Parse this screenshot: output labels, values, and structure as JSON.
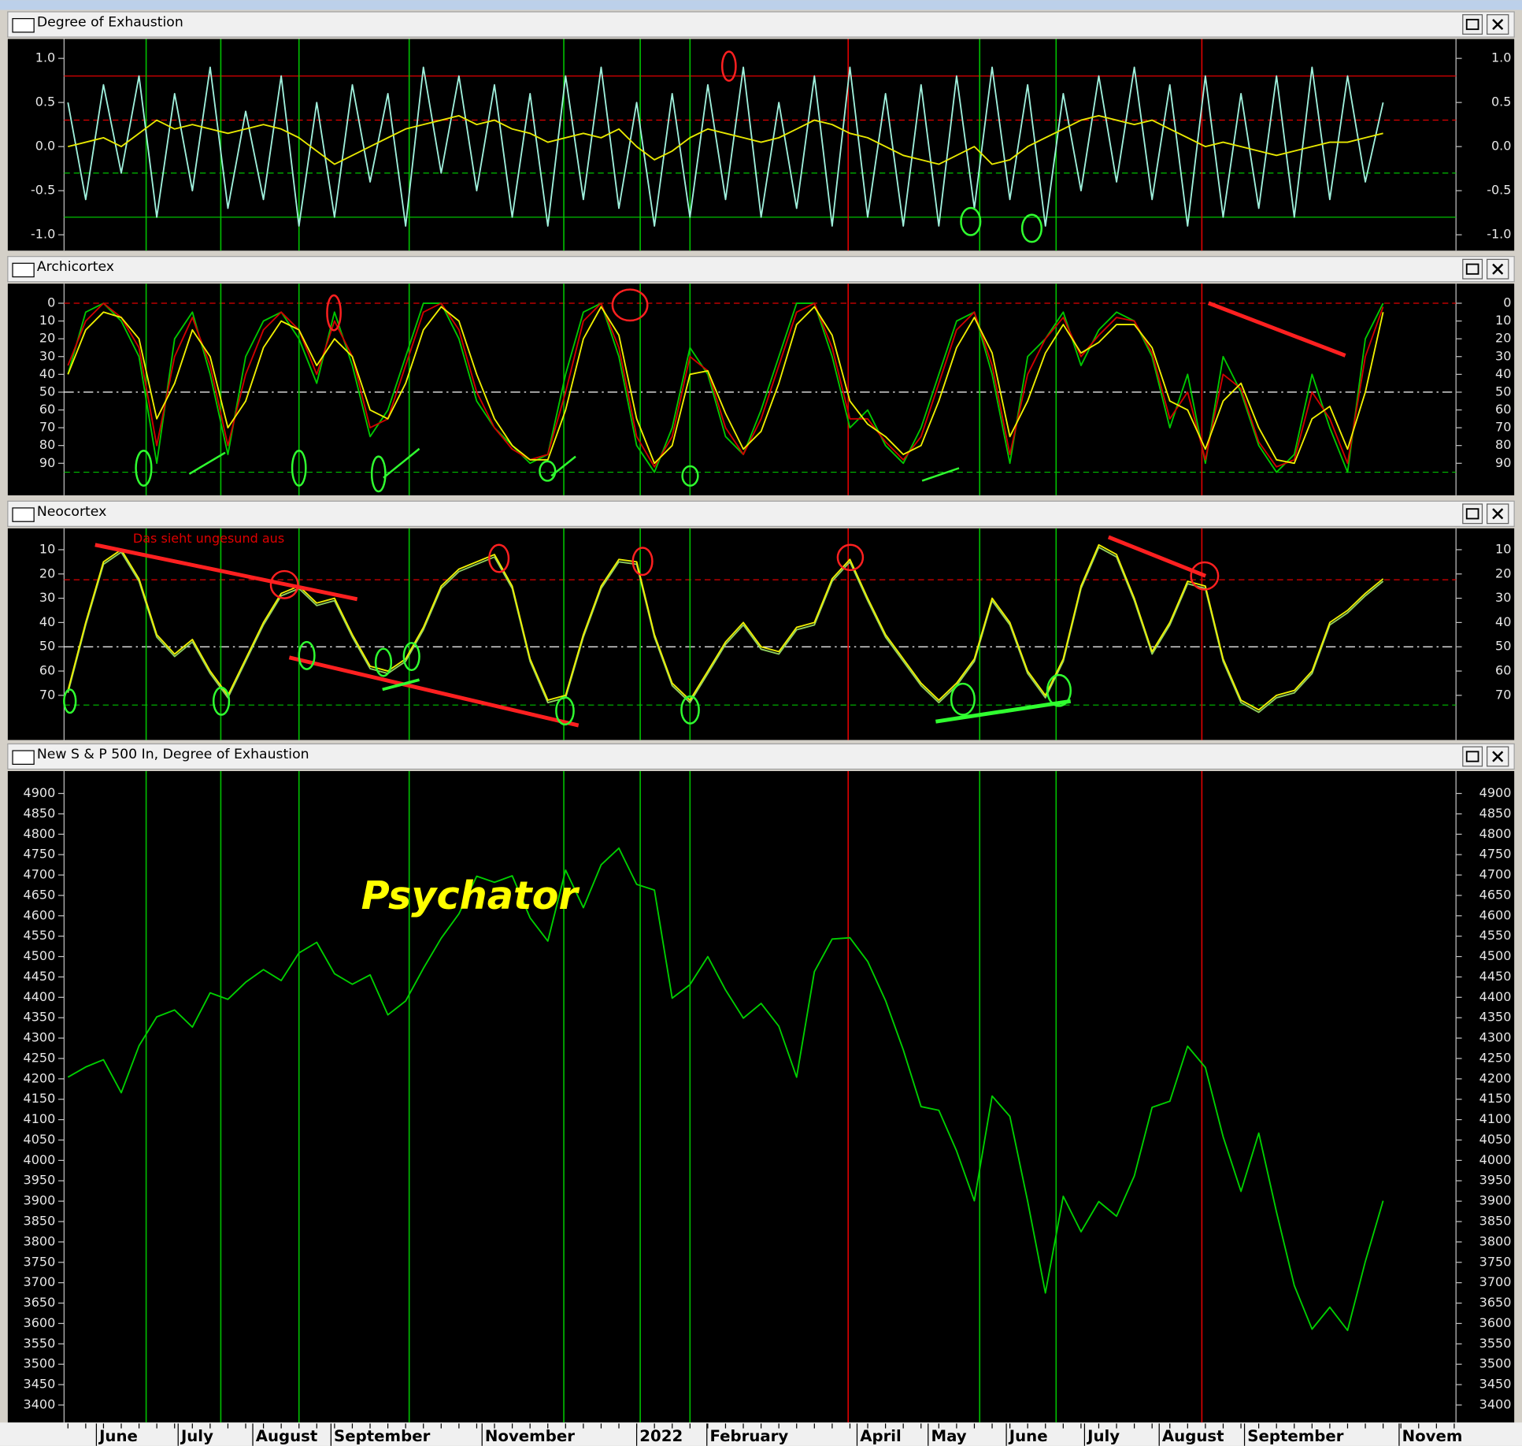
{
  "chart_data": [
    {
      "type": "line",
      "title": "Degree of Exhaustion",
      "xlim": [
        0,
        78.1
      ],
      "ylim": [
        -1.18,
        1.22
      ],
      "yticks": [
        {
          "value": -1,
          "label": "-1.0"
        },
        -0.5,
        {
          "value": 0,
          "label": "0.0"
        },
        0.5,
        {
          "value": 1,
          "label": "1.0"
        }
      ],
      "levels": [
        {
          "value": 0.8,
          "color": "#e00000",
          "style": "solid"
        },
        {
          "value": 0.3,
          "color": "#e00000",
          "style": "dashed"
        },
        {
          "value": -0.3,
          "color": "#00c000",
          "style": "dashed"
        },
        {
          "value": -0.8,
          "color": "#00c000",
          "style": "solid"
        }
      ],
      "series": [
        {
          "color": "#9ff0dc",
          "values": [
            0.5,
            -0.6,
            0.7,
            -0.3,
            0.8,
            -0.8,
            0.6,
            -0.5,
            0.9,
            -0.7,
            0.4,
            -0.6,
            0.8,
            -0.9,
            0.5,
            -0.8,
            0.7,
            -0.4,
            0.6,
            -0.9,
            0.9,
            -0.3,
            0.8,
            -0.5,
            0.7,
            -0.8,
            0.6,
            -0.9,
            0.8,
            -0.6,
            0.9,
            -0.7,
            0.5,
            -0.9,
            0.6,
            -0.8,
            0.7,
            -0.6,
            0.9,
            -0.8,
            0.5,
            -0.7,
            0.8,
            -0.9,
            0.9,
            -0.8,
            0.6,
            -0.9,
            0.7,
            -0.9,
            0.8,
            -0.7,
            0.9,
            -0.6,
            0.7,
            -0.9,
            0.6,
            -0.5,
            0.8,
            -0.4,
            0.9,
            -0.6,
            0.7,
            -0.9,
            0.8,
            -0.8,
            0.6,
            -0.7,
            0.8,
            -0.8,
            0.9,
            -0.6,
            0.8,
            -0.4,
            0.5
          ]
        },
        {
          "color": "#e8e800",
          "values": [
            0,
            0.05,
            0.1,
            0,
            0.15,
            0.3,
            0.2,
            0.25,
            0.2,
            0.15,
            0.2,
            0.25,
            0.2,
            0.1,
            -0.05,
            -0.2,
            -0.1,
            0,
            0.1,
            0.2,
            0.25,
            0.3,
            0.35,
            0.25,
            0.3,
            0.2,
            0.15,
            0.05,
            0.1,
            0.15,
            0.1,
            0.2,
            0,
            -0.15,
            -0.05,
            0.1,
            0.2,
            0.15,
            0.1,
            0.05,
            0.1,
            0.2,
            0.3,
            0.25,
            0.15,
            0.1,
            0,
            -0.1,
            -0.15,
            -0.2,
            -0.1,
            0,
            -0.2,
            -0.15,
            0,
            0.1,
            0.2,
            0.3,
            0.35,
            0.3,
            0.25,
            0.3,
            0.2,
            0.1,
            0,
            0.05,
            0,
            -0.05,
            -0.1,
            -0.05,
            0,
            0.05,
            0.05,
            0.1,
            0.15
          ]
        }
      ]
    },
    {
      "type": "line",
      "title": "Archicortex",
      "xlim": [
        0,
        78.1
      ],
      "ylim": [
        108,
        -11
      ],
      "yticks": [
        0,
        10,
        20,
        30,
        40,
        50,
        60,
        70,
        80,
        90
      ],
      "levels": [
        {
          "value": 0,
          "color": "#e00000",
          "style": "dashed"
        },
        {
          "value": 50,
          "color": "#ffffff",
          "style": "dashdot"
        },
        {
          "value": 95,
          "color": "#00c000",
          "style": "dashed"
        }
      ],
      "series": [
        {
          "color": "#00c800",
          "values": [
            40,
            5,
            0,
            10,
            30,
            90,
            20,
            5,
            40,
            85,
            30,
            10,
            5,
            20,
            45,
            5,
            35,
            75,
            60,
            30,
            0,
            0,
            20,
            55,
            70,
            80,
            90,
            85,
            40,
            5,
            0,
            30,
            80,
            95,
            70,
            25,
            40,
            75,
            85,
            60,
            30,
            0,
            0,
            30,
            70,
            60,
            80,
            90,
            70,
            40,
            10,
            5,
            40,
            90,
            30,
            20,
            5,
            35,
            15,
            5,
            10,
            30,
            70,
            40,
            90,
            30,
            50,
            80,
            95,
            85,
            40,
            70,
            95,
            20,
            0
          ]
        },
        {
          "color": "#d00000",
          "values": [
            35,
            10,
            0,
            8,
            25,
            80,
            30,
            8,
            35,
            80,
            40,
            15,
            5,
            15,
            40,
            10,
            30,
            70,
            65,
            35,
            5,
            0,
            15,
            50,
            70,
            82,
            88,
            85,
            50,
            10,
            0,
            25,
            75,
            92,
            75,
            30,
            38,
            70,
            85,
            65,
            35,
            5,
            0,
            25,
            65,
            65,
            78,
            88,
            75,
            45,
            15,
            5,
            35,
            85,
            40,
            20,
            8,
            30,
            18,
            8,
            10,
            28,
            65,
            50,
            88,
            40,
            48,
            78,
            92,
            88,
            50,
            65,
            90,
            30,
            2
          ]
        },
        {
          "color": "#f0f000",
          "values": [
            40,
            15,
            5,
            8,
            20,
            65,
            45,
            15,
            30,
            70,
            55,
            25,
            10,
            15,
            35,
            20,
            30,
            60,
            65,
            45,
            15,
            2,
            10,
            40,
            65,
            80,
            88,
            88,
            60,
            20,
            2,
            18,
            65,
            90,
            80,
            40,
            38,
            62,
            82,
            72,
            45,
            12,
            2,
            18,
            55,
            68,
            75,
            85,
            80,
            55,
            25,
            8,
            28,
            75,
            55,
            28,
            12,
            28,
            22,
            12,
            12,
            25,
            55,
            60,
            82,
            55,
            45,
            70,
            88,
            90,
            65,
            58,
            82,
            50,
            5
          ]
        }
      ]
    },
    {
      "type": "line",
      "title": "Neocortex",
      "annotation": "Das sieht ungesund aus",
      "xlim": [
        0,
        78.1
      ],
      "ylim": [
        88.4,
        1.2
      ],
      "yticks": [
        10,
        20,
        30,
        40,
        50,
        60,
        70
      ],
      "levels": [
        {
          "value": 22.4,
          "color": "#e00000",
          "style": "dashed"
        },
        {
          "value": 50,
          "color": "#ffffff",
          "style": "dashdot"
        },
        {
          "value": 74,
          "color": "#00c000",
          "style": "dashed"
        }
      ],
      "series": [
        {
          "color": "#90d060",
          "values": [
            69,
            41,
            16,
            11,
            23,
            46,
            54,
            48,
            61,
            71,
            56,
            41,
            29,
            26,
            33,
            31,
            46,
            59,
            61,
            56,
            43,
            26,
            19,
            16,
            13,
            26,
            56,
            73,
            71,
            46,
            26,
            15,
            16,
            46,
            66,
            73,
            61,
            49,
            41,
            51,
            53,
            43,
            41,
            23,
            15,
            31,
            46,
            56,
            66,
            73,
            66,
            56,
            31,
            41,
            61,
            71,
            56,
            26,
            9,
            13,
            31,
            53,
            41,
            24,
            26,
            56,
            73,
            77,
            71,
            69,
            61,
            41,
            36,
            29,
            23
          ]
        },
        {
          "color": "#f0f000",
          "values": [
            68,
            40,
            15,
            10,
            22,
            45,
            53,
            47,
            60,
            70,
            55,
            40,
            28,
            25,
            32,
            30,
            45,
            58,
            60,
            55,
            42,
            25,
            18,
            15,
            12,
            25,
            55,
            72,
            70,
            45,
            25,
            14,
            15,
            45,
            65,
            72,
            60,
            48,
            40,
            50,
            52,
            42,
            40,
            22,
            14,
            30,
            45,
            55,
            65,
            72,
            65,
            55,
            30,
            40,
            60,
            70,
            55,
            25,
            8,
            12,
            30,
            52,
            40,
            23,
            25,
            55,
            72,
            76,
            70,
            68,
            60,
            40,
            35,
            28,
            22
          ]
        }
      ]
    },
    {
      "type": "line",
      "title": "New S & P 500 In, Degree of Exhaustion",
      "annotation": "Psychator",
      "xlim": [
        0,
        78.1
      ],
      "ylim": [
        3357,
        4955
      ],
      "yticks": [
        3400,
        3450,
        3500,
        3550,
        3600,
        3650,
        3700,
        3750,
        3800,
        3850,
        3900,
        3950,
        4000,
        4050,
        4100,
        4150,
        4200,
        4250,
        4300,
        4350,
        4400,
        4450,
        4500,
        4550,
        4600,
        4650,
        4700,
        4750,
        4800,
        4850,
        4900
      ],
      "xticks": [
        {
          "value": 1.6,
          "label": "June"
        },
        {
          "value": 6.2,
          "label": "July"
        },
        {
          "value": 10.4,
          "label": "August"
        },
        {
          "value": 14.8,
          "label": "September"
        },
        {
          "value": 23.3,
          "label": "November"
        },
        {
          "value": 32.0,
          "label": "2022"
        },
        {
          "value": 35.95,
          "label": "February"
        },
        {
          "value": 44.4,
          "label": "April"
        },
        {
          "value": 48.4,
          "label": "May"
        },
        {
          "value": 52.8,
          "label": "June"
        },
        {
          "value": 57.2,
          "label": "July"
        },
        {
          "value": 61.4,
          "label": "August"
        },
        {
          "value": 66.2,
          "label": "September"
        },
        {
          "value": 74.9,
          "label": "Novem"
        }
      ],
      "vlines": [
        {
          "value": 4.4,
          "color": "#00c000"
        },
        {
          "value": 8.6,
          "color": "#00c000"
        },
        {
          "value": 13.0,
          "color": "#00c000"
        },
        {
          "value": 19.2,
          "color": "#00c000"
        },
        {
          "value": 27.9,
          "color": "#00c000"
        },
        {
          "value": 32.2,
          "color": "#00c000"
        },
        {
          "value": 35.0,
          "color": "#00c000"
        },
        {
          "value": 43.9,
          "color": "#e00000"
        },
        {
          "value": 51.3,
          "color": "#00c000"
        },
        {
          "value": 55.6,
          "color": "#00c000"
        },
        {
          "value": 63.8,
          "color": "#e00000"
        }
      ],
      "series": [
        {
          "color": "#00d000",
          "values": [
            4204,
            4229,
            4247,
            4166,
            4281,
            4352,
            4369,
            4327,
            4411,
            4395,
            4437,
            4468,
            4441,
            4509,
            4535,
            4458,
            4432,
            4455,
            4357,
            4391,
            4471,
            4545,
            4605,
            4697,
            4682,
            4698,
            4595,
            4538,
            4712,
            4620,
            4725,
            4766,
            4677,
            4663,
            4398,
            4431,
            4500,
            4418,
            4349,
            4385,
            4329,
            4204,
            4463,
            4543,
            4546,
            4488,
            4392,
            4271,
            4132,
            4123,
            4023,
            3901,
            4158,
            4108,
            3900,
            3675,
            3912,
            3825,
            3899,
            3863,
            3962,
            4130,
            4145,
            4280,
            4228,
            4058,
            3924,
            4067,
            3873,
            3693,
            3586,
            3640,
            3583,
            3752,
            3901
          ]
        }
      ]
    }
  ]
}
